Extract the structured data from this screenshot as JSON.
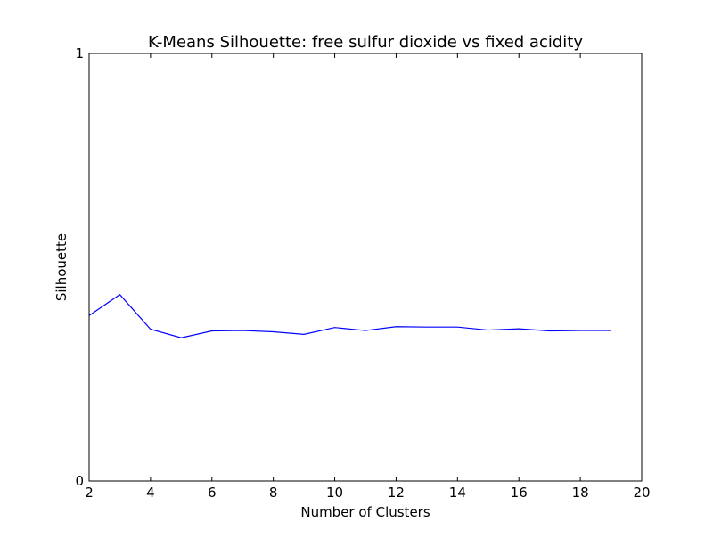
{
  "chart_data": {
    "type": "line",
    "title": "K-Means Silhouette: free sulfur dioxide vs fixed acidity",
    "xlabel": "Number of Clusters",
    "ylabel": "Silhouette",
    "xlim": [
      2,
      20
    ],
    "ylim": [
      0,
      1
    ],
    "xticks": [
      2,
      4,
      6,
      8,
      10,
      12,
      14,
      16,
      18,
      20
    ],
    "yticks": [
      0,
      1
    ],
    "grid": false,
    "legend": "none",
    "series": [
      {
        "color": "#0000ff",
        "x": [
          2,
          3,
          4,
          5,
          6,
          7,
          8,
          9,
          10,
          11,
          12,
          13,
          14,
          15,
          16,
          17,
          18,
          19
        ],
        "y": [
          0.387,
          0.436,
          0.355,
          0.335,
          0.351,
          0.352,
          0.349,
          0.343,
          0.359,
          0.352,
          0.361,
          0.36,
          0.36,
          0.353,
          0.356,
          0.351,
          0.352,
          0.352
        ]
      }
    ]
  }
}
